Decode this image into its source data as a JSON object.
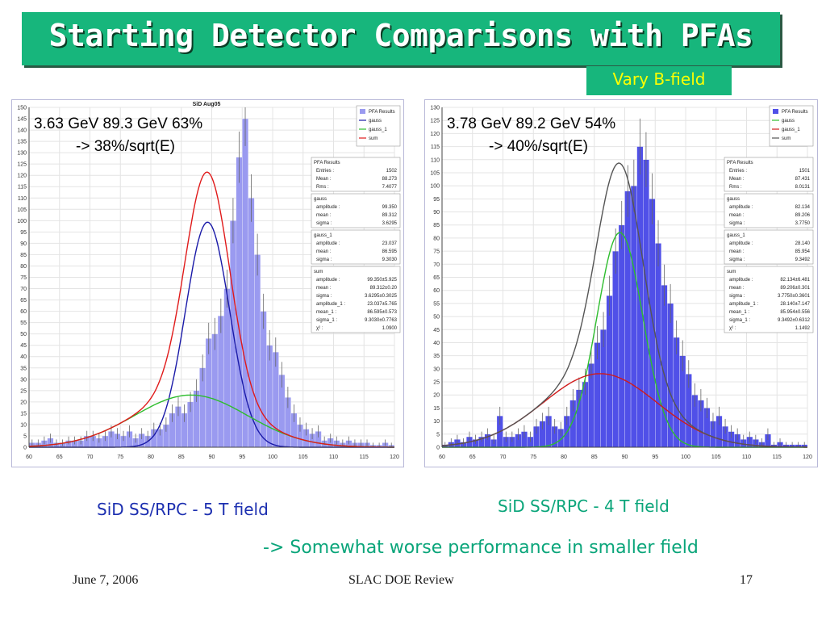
{
  "slide": {
    "title": "Starting Detector Comparisons with PFAs",
    "tag": "Vary B-field",
    "caption_left": "SiD SS/RPC - 5 T field",
    "caption_right": "SiD SS/RPC - 4 T field",
    "conclusion": "-> Somewhat worse performance in smaller field",
    "footer": {
      "date": "June 7, 2006",
      "center": "SLAC DOE Review",
      "page": "17"
    },
    "colors": {
      "title_bg": "#17b67c",
      "tag_text": "#ffff00",
      "caption_left": "#1c2fb0",
      "caption_right": "#0aa57a"
    }
  },
  "chart_data": [
    {
      "type": "bar",
      "title": "SiD Aug05",
      "annotation": [
        "3.63 GeV  89.3 GeV 63%",
        "-> 38%/sqrt(E)"
      ],
      "xlim": [
        60,
        120
      ],
      "ylim": [
        0,
        150
      ],
      "xticks": [
        60,
        65,
        70,
        75,
        80,
        85,
        90,
        95,
        100,
        105,
        110,
        115,
        120
      ],
      "yticks": [
        0,
        5,
        10,
        15,
        20,
        25,
        30,
        35,
        40,
        45,
        50,
        55,
        60,
        65,
        70,
        75,
        80,
        85,
        90,
        95,
        100,
        105,
        110,
        115,
        120,
        125,
        130,
        135,
        140,
        145,
        150
      ],
      "bin_width": 1,
      "bin_values": [
        2,
        2,
        3,
        4,
        2,
        2,
        3,
        3,
        3,
        5,
        5,
        4,
        5,
        7,
        6,
        5,
        7,
        4,
        6,
        5,
        8,
        8,
        10,
        15,
        18,
        15,
        20,
        25,
        35,
        48,
        50,
        58,
        70,
        100,
        128,
        145,
        110,
        85,
        60,
        45,
        42,
        32,
        22,
        15,
        10,
        8,
        6,
        7,
        3,
        4,
        3,
        2,
        3,
        2,
        2,
        2,
        1,
        1,
        2,
        1
      ],
      "bar_color": "#9a9af0",
      "legend": {
        "title": "PFA Results",
        "entries": [
          {
            "label": "PFA Results",
            "color": "#9a9af0",
            "kind": "box"
          },
          {
            "label": "gauss",
            "color": "#1a1aa8",
            "kind": "line"
          },
          {
            "label": "gauss_1",
            "color": "#2ebd2e",
            "kind": "line"
          },
          {
            "label": "sum",
            "color": "#e01a1a",
            "kind": "line"
          }
        ]
      },
      "curves": [
        {
          "name": "gauss",
          "color": "#1a1aa8",
          "amplitude": 99.35,
          "mean": 89.312,
          "sigma": 3.6295
        },
        {
          "name": "gauss_1",
          "color": "#2ebd2e",
          "amplitude": 23.037,
          "mean": 86.595,
          "sigma": 9.303
        },
        {
          "name": "sum",
          "color": "#e01a1a",
          "sum": true
        }
      ],
      "stats": [
        {
          "title": "PFA Results",
          "rows": [
            [
              "Entries :",
              "1502"
            ],
            [
              "Mean :",
              "88.273"
            ],
            [
              "Rms :",
              "7.4077"
            ]
          ]
        },
        {
          "title": "gauss",
          "rows": [
            [
              "amplitude :",
              "99.350"
            ],
            [
              "mean :",
              "89.312"
            ],
            [
              "sigma :",
              "3.6295"
            ]
          ]
        },
        {
          "title": "gauss_1",
          "rows": [
            [
              "amplitude :",
              "23.037"
            ],
            [
              "mean :",
              "86.595"
            ],
            [
              "sigma :",
              "9.3030"
            ]
          ]
        },
        {
          "title": "sum",
          "rows": [
            [
              "amplitude :",
              "99.350±5.925"
            ],
            [
              "mean :",
              "89.312±0.20"
            ],
            [
              "sigma :",
              "3.6295±0.3025"
            ],
            [
              "amplitude_1 :",
              "23.037±5.765"
            ],
            [
              "mean_1 :",
              "86.595±0.573"
            ],
            [
              "sigma_1 :",
              "9.3030±0.7763"
            ],
            [
              "χ² :",
              "1.0900"
            ]
          ]
        }
      ]
    },
    {
      "type": "bar",
      "title": "",
      "annotation": [
        "3.78 GeV  89.2 GeV 54%",
        "-> 40%/sqrt(E)"
      ],
      "xlim": [
        60,
        120
      ],
      "ylim": [
        0,
        130
      ],
      "xticks": [
        60,
        65,
        70,
        75,
        80,
        85,
        90,
        95,
        100,
        105,
        110,
        115,
        120
      ],
      "yticks": [
        0,
        5,
        10,
        15,
        20,
        25,
        30,
        35,
        40,
        45,
        50,
        55,
        60,
        65,
        70,
        75,
        80,
        85,
        90,
        95,
        100,
        105,
        110,
        115,
        120,
        125,
        130
      ],
      "bin_width": 1,
      "bin_values": [
        1,
        2,
        3,
        2,
        4,
        3,
        4,
        5,
        3,
        12,
        4,
        4,
        5,
        6,
        4,
        8,
        10,
        12,
        8,
        7,
        12,
        18,
        22,
        25,
        32,
        40,
        45,
        58,
        75,
        85,
        98,
        100,
        115,
        110,
        95,
        78,
        62,
        55,
        42,
        35,
        28,
        20,
        18,
        15,
        10,
        12,
        8,
        6,
        5,
        3,
        4,
        3,
        2,
        5,
        1,
        2,
        1,
        1,
        1,
        1
      ],
      "bar_color": "#5050e8",
      "legend": {
        "title": "PFA Results",
        "entries": [
          {
            "label": "PFA Results",
            "color": "#5050e8",
            "kind": "box"
          },
          {
            "label": "gauss",
            "color": "#2ebd2e",
            "kind": "line"
          },
          {
            "label": "gauss_1",
            "color": "#d01a1a",
            "kind": "line"
          },
          {
            "label": "sum",
            "color": "#555555",
            "kind": "line"
          }
        ]
      },
      "curves": [
        {
          "name": "gauss",
          "color": "#2ebd2e",
          "amplitude": 82.134,
          "mean": 89.206,
          "sigma": 3.775
        },
        {
          "name": "gauss_1",
          "color": "#d01a1a",
          "amplitude": 28.14,
          "mean": 85.954,
          "sigma": 9.3492
        },
        {
          "name": "sum",
          "color": "#555555",
          "sum": true
        }
      ],
      "stats": [
        {
          "title": "PFA Results",
          "rows": [
            [
              "Entries :",
              "1501"
            ],
            [
              "Mean :",
              "87.431"
            ],
            [
              "Rms :",
              "8.0131"
            ]
          ]
        },
        {
          "title": "gauss",
          "rows": [
            [
              "amplitude :",
              "82.134"
            ],
            [
              "mean :",
              "89.206"
            ],
            [
              "sigma :",
              "3.7750"
            ]
          ]
        },
        {
          "title": "gauss_1",
          "rows": [
            [
              "amplitude :",
              "28.140"
            ],
            [
              "mean :",
              "85.954"
            ],
            [
              "sigma :",
              "9.3492"
            ]
          ]
        },
        {
          "title": "sum",
          "rows": [
            [
              "amplitude :",
              "82.134±6.481"
            ],
            [
              "mean :",
              "89.206±0.301"
            ],
            [
              "sigma :",
              "3.7750±0.3601"
            ],
            [
              "amplitude_1 :",
              "28.140±7.147"
            ],
            [
              "mean_1 :",
              "85.954±0.556"
            ],
            [
              "sigma_1 :",
              "9.3492±0.6312"
            ],
            [
              "χ² :",
              "1.1492"
            ]
          ]
        }
      ]
    }
  ]
}
